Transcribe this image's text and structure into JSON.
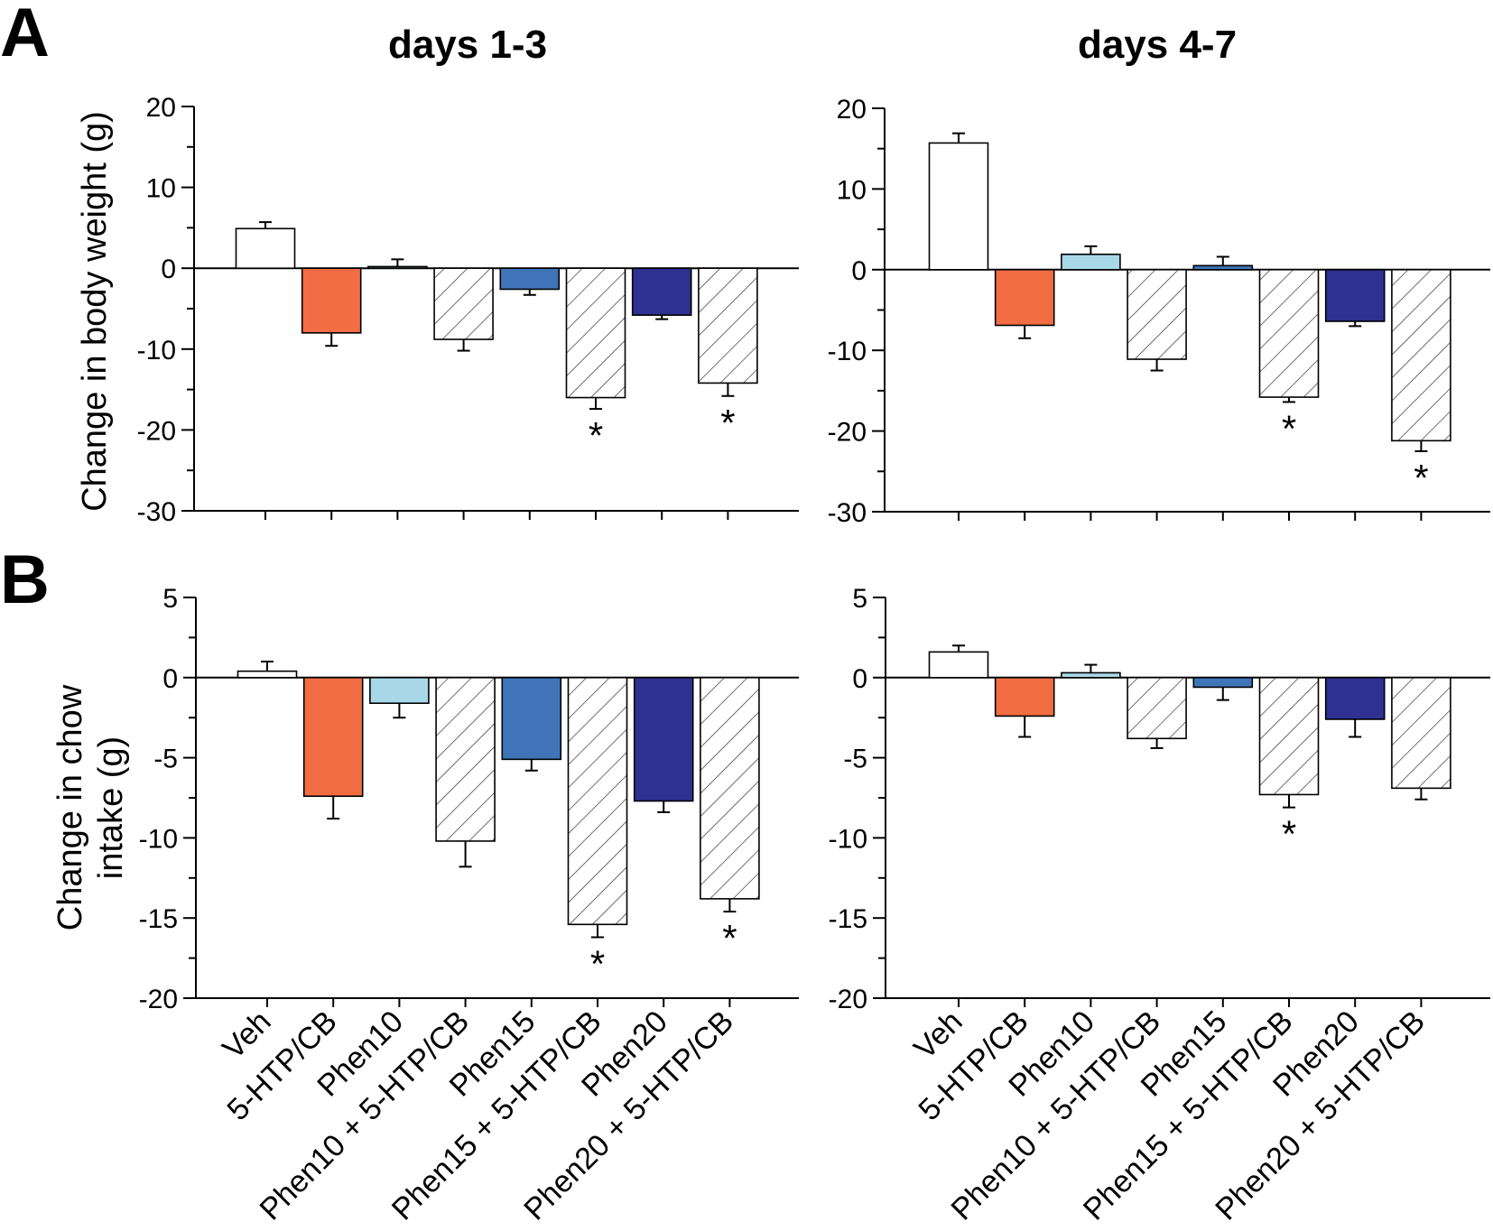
{
  "figure": {
    "panel_a_letter": "A",
    "panel_b_letter": "B",
    "column_titles": [
      "days 1-3",
      "days 4-7"
    ],
    "ylabel_a": "Change in body weight (g)",
    "ylabel_b_line1": "Change in chow",
    "ylabel_b_line2": "intake (g)"
  },
  "colors": {
    "veh": "#ffffff",
    "htp_cb": "#f26d43",
    "phen10": "#a8d8e8",
    "phen15": "#3f75b8",
    "phen20": "#2e3191",
    "combo_hatch": "#ffffff"
  },
  "chart_data": [
    {
      "type": "bar",
      "panel": "A",
      "title": "days 1-3",
      "ylabel": "Change in body weight (g)",
      "ylim": [
        -30,
        20
      ],
      "yticks": [
        20,
        10,
        0,
        -10,
        -20,
        -30
      ],
      "categories": [
        "Veh",
        "5-HTP/CB",
        "Phen10",
        "Phen10 + 5-HTP/CB",
        "Phen15",
        "Phen15 + 5-HTP/CB",
        "Phen20",
        "Phen20 + 5-HTP/CB"
      ],
      "values": [
        4.9,
        -8.0,
        0.2,
        -8.8,
        -2.6,
        -16.0,
        -5.8,
        -14.2
      ],
      "errors": [
        0.8,
        1.6,
        0.9,
        1.4,
        0.7,
        1.4,
        0.5,
        1.6
      ],
      "significant": [
        false,
        false,
        false,
        false,
        false,
        true,
        false,
        true
      ]
    },
    {
      "type": "bar",
      "panel": "A",
      "title": "days 4-7",
      "ylabel": "Change in body weight (g)",
      "ylim": [
        -30,
        20
      ],
      "yticks": [
        20,
        10,
        0,
        -10,
        -20,
        -30
      ],
      "categories": [
        "Veh",
        "5-HTP/CB",
        "Phen10",
        "Phen10 + 5-HTP/CB",
        "Phen15",
        "Phen15 + 5-HTP/CB",
        "Phen20",
        "Phen20 + 5-HTP/CB"
      ],
      "values": [
        15.7,
        -6.9,
        1.9,
        -11.1,
        0.5,
        -15.8,
        -6.4,
        -21.2
      ],
      "errors": [
        1.2,
        1.6,
        1.0,
        1.4,
        1.1,
        0.6,
        0.6,
        1.3
      ],
      "significant": [
        false,
        false,
        false,
        false,
        false,
        true,
        false,
        true
      ]
    },
    {
      "type": "bar",
      "panel": "B",
      "title": "days 1-3",
      "ylabel": "Change in chow intake (g)",
      "ylim": [
        -20,
        5
      ],
      "yticks": [
        5,
        0,
        -5,
        -10,
        -15,
        -20
      ],
      "categories": [
        "Veh",
        "5-HTP/CB",
        "Phen10",
        "Phen10 + 5-HTP/CB",
        "Phen15",
        "Phen15 + 5-HTP/CB",
        "Phen20",
        "Phen20 + 5-HTP/CB"
      ],
      "values": [
        0.4,
        -7.4,
        -1.6,
        -10.2,
        -5.1,
        -15.4,
        -7.7,
        -13.8
      ],
      "errors": [
        0.6,
        1.4,
        0.9,
        1.6,
        0.7,
        0.8,
        0.7,
        0.8
      ],
      "significant": [
        false,
        false,
        false,
        false,
        false,
        true,
        false,
        true
      ]
    },
    {
      "type": "bar",
      "panel": "B",
      "title": "days 4-7",
      "ylabel": "Change in chow intake (g)",
      "ylim": [
        -20,
        5
      ],
      "yticks": [
        5,
        0,
        -5,
        -10,
        -15,
        -20
      ],
      "categories": [
        "Veh",
        "5-HTP/CB",
        "Phen10",
        "Phen10 + 5-HTP/CB",
        "Phen15",
        "Phen15 + 5-HTP/CB",
        "Phen20",
        "Phen20 + 5-HTP/CB"
      ],
      "values": [
        1.6,
        -2.4,
        0.3,
        -3.8,
        -0.6,
        -7.3,
        -2.6,
        -6.9
      ],
      "errors": [
        0.4,
        1.3,
        0.5,
        0.6,
        0.8,
        0.8,
        1.1,
        0.7
      ],
      "significant": [
        false,
        false,
        false,
        false,
        false,
        true,
        false,
        false
      ]
    }
  ]
}
